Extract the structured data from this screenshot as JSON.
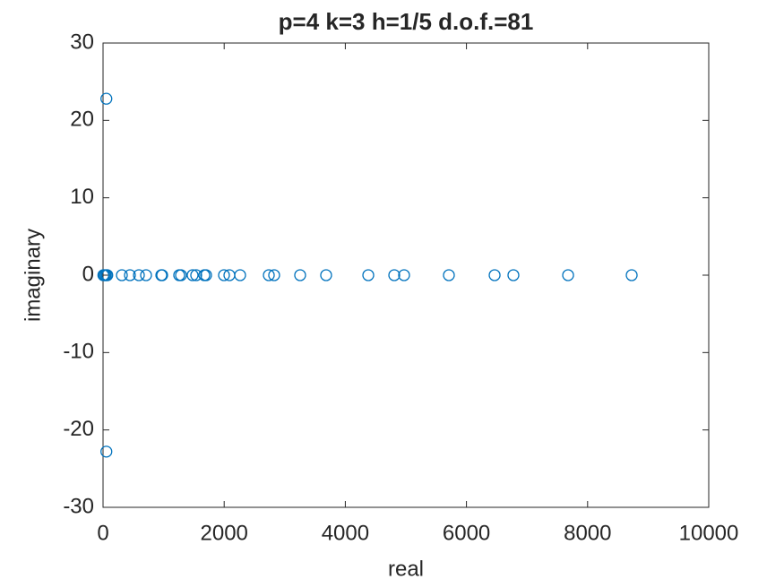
{
  "chart_data": {
    "type": "scatter",
    "title": "p=4 k=3 h=1/5 d.o.f.=81",
    "x_label": "real",
    "y_label": "imaginary",
    "series": [
      {
        "color": "#0072bd",
        "x": [
          5,
          20,
          40,
          60,
          70,
          55,
          55,
          311,
          444,
          592,
          710,
          962,
          976,
          1257,
          1287,
          1479,
          1538,
          1672,
          1701,
          1997,
          2086,
          2263,
          2737,
          2825,
          3254,
          3683,
          4379,
          4808,
          4970,
          5710,
          6465,
          6775,
          7678,
          8728
        ],
        "values": [
          0,
          0,
          0,
          0,
          0,
          22.8,
          -22.8,
          0,
          0,
          0,
          0,
          0,
          0,
          0,
          0,
          0,
          0,
          0,
          0,
          0,
          0,
          0,
          0,
          0,
          0,
          0,
          0,
          0,
          0,
          0,
          0,
          0,
          0,
          0
        ]
      }
    ],
    "xlim": [
      0,
      10000
    ],
    "xticks": [
      0,
      2000,
      4000,
      6000,
      8000,
      10000
    ],
    "ylim": [
      -30,
      30
    ],
    "yticks": [
      -30,
      -20,
      -10,
      0,
      10,
      20,
      30
    ],
    "grid": false
  }
}
